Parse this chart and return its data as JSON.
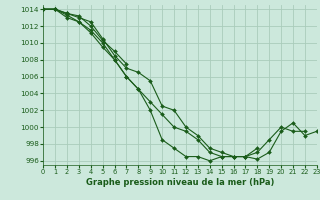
{
  "background_color": "#cce8dc",
  "grid_color": "#aaccbb",
  "line_color": "#1a5c1a",
  "title": "Graphe pression niveau de la mer (hPa)",
  "xlim": [
    0,
    23
  ],
  "ylim": [
    995.5,
    1014.5
  ],
  "yticks": [
    996,
    998,
    1000,
    1002,
    1004,
    1006,
    1008,
    1010,
    1012,
    1014
  ],
  "xticks": [
    0,
    1,
    2,
    3,
    4,
    5,
    6,
    7,
    8,
    9,
    10,
    11,
    12,
    13,
    14,
    15,
    16,
    17,
    18,
    19,
    20,
    21,
    22,
    23
  ],
  "series": [
    [
      1014.0,
      1014.0,
      1013.5,
      1013.0,
      1012.5,
      1010.5,
      1008.5,
      1007.0,
      1006.5,
      1005.5,
      1002.5,
      1002.0,
      1000.0,
      999.0,
      997.5,
      997.0,
      996.5,
      996.5,
      997.0,
      998.5,
      1000.0,
      999.5,
      999.5,
      null
    ],
    [
      1014.0,
      1014.0,
      1013.5,
      1013.2,
      1012.0,
      1010.3,
      1009.0,
      1007.5,
      null,
      null,
      null,
      null,
      null,
      null,
      null,
      null,
      null,
      null,
      null,
      null,
      null,
      null,
      null,
      null
    ],
    [
      1014.0,
      1014.0,
      1013.3,
      1012.5,
      1011.5,
      1010.0,
      1008.0,
      1006.0,
      1004.5,
      1002.0,
      998.5,
      997.5,
      996.5,
      996.5,
      996.0,
      996.5,
      996.5,
      996.5,
      997.5,
      null,
      null,
      null,
      null,
      null
    ],
    [
      1014.0,
      1014.0,
      1013.0,
      1012.5,
      1011.2,
      1009.5,
      1008.0,
      1006.0,
      1004.5,
      1003.0,
      1001.5,
      1000.0,
      999.5,
      998.5,
      997.0,
      996.5,
      996.5,
      996.5,
      996.2,
      997.0,
      999.5,
      1000.5,
      999.0,
      999.5
    ]
  ]
}
